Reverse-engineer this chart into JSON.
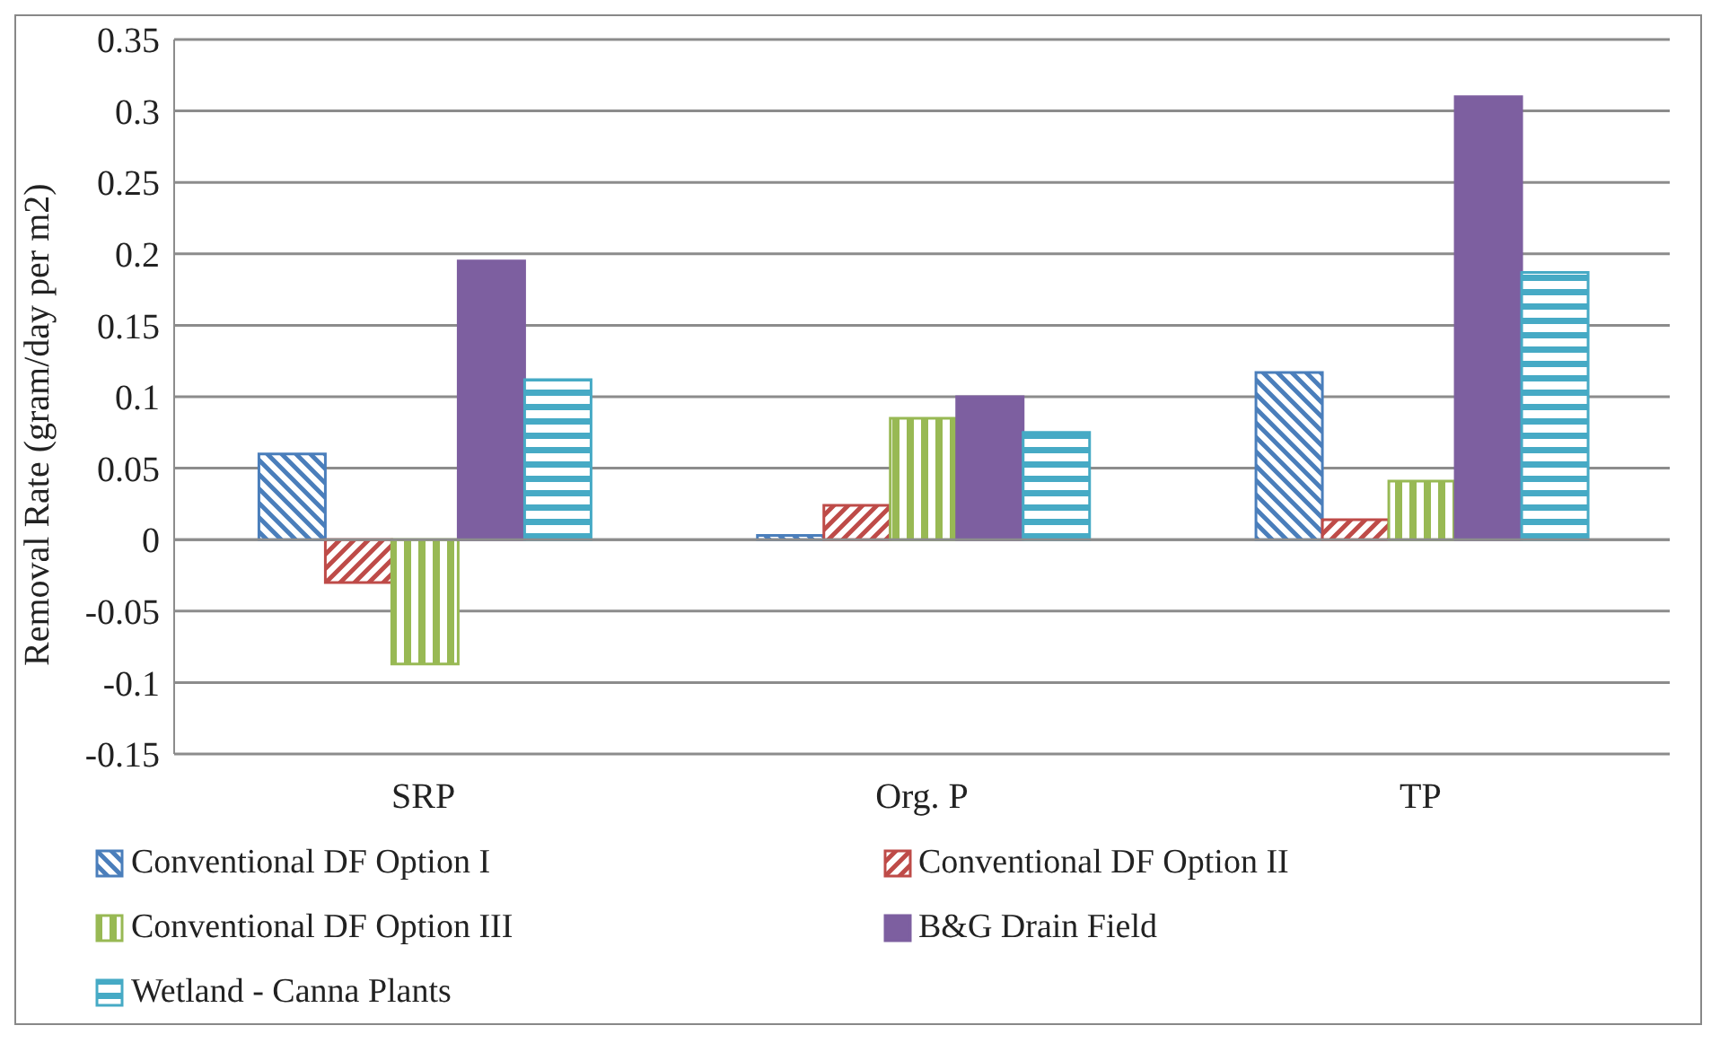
{
  "chart_data": {
    "type": "bar",
    "ylabel": "Removal Rate (gram/day per m2)",
    "categories": [
      "SRP",
      "Org. P",
      "TP"
    ],
    "series": [
      {
        "name": "Conventional DF Option I",
        "color": "#4a7ebb",
        "values": [
          0.06,
          0.003,
          0.117
        ]
      },
      {
        "name": "Conventional DF Option II",
        "color": "#be4b48",
        "values": [
          -0.03,
          0.024,
          0.014
        ]
      },
      {
        "name": "Conventional DF Option III",
        "color": "#98b954",
        "values": [
          -0.087,
          0.085,
          0.041
        ]
      },
      {
        "name": "B&G Drain Field",
        "color": "#7d5fa0",
        "values": [
          0.195,
          0.1,
          0.31
        ]
      },
      {
        "name": "Wetland - Canna Plants",
        "color": "#46aac5",
        "values": [
          0.112,
          0.075,
          0.187
        ]
      }
    ],
    "ylim": [
      -0.15,
      0.35
    ],
    "yticks": [
      -0.15,
      -0.1,
      -0.05,
      0,
      0.05,
      0.1,
      0.15,
      0.2,
      0.25,
      0.3,
      0.35
    ],
    "grid": "y",
    "legend": "bottom"
  }
}
